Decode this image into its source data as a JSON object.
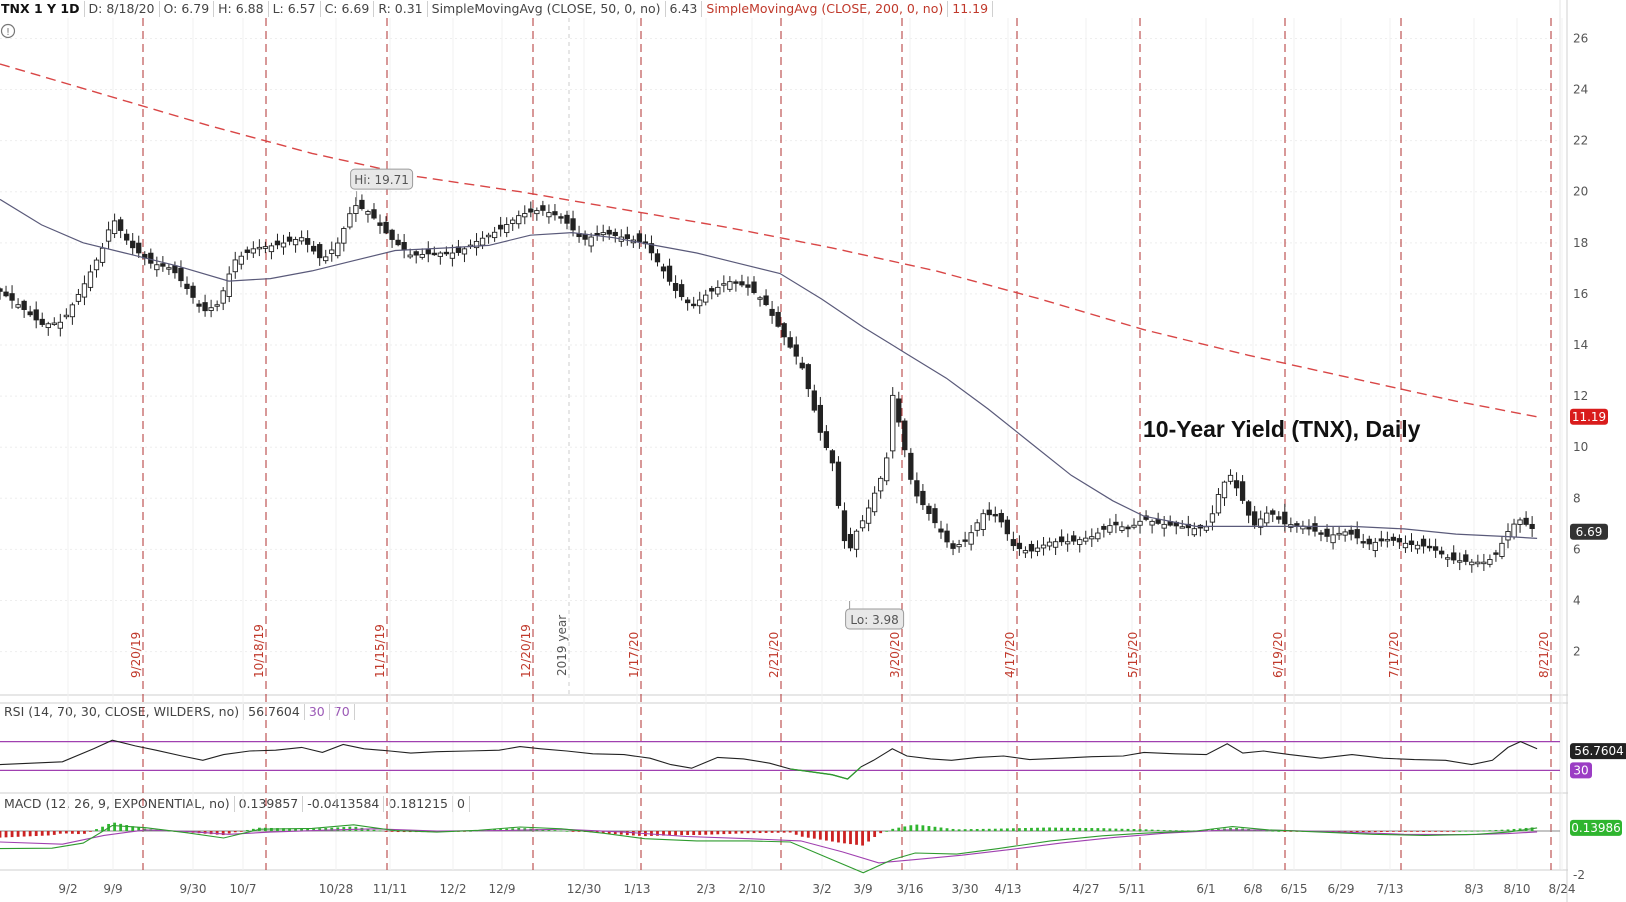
{
  "header": {
    "symbol": "TNX 1 Y 1D",
    "date": "D: 8/18/20",
    "open": "O: 6.79",
    "high": "H: 6.88",
    "low": "L: 6.57",
    "close": "C: 6.69",
    "range": "R: 0.31",
    "sma50_label": "SimpleMovingAvg (CLOSE, 50, 0, no)",
    "sma50_value": "6.43",
    "sma200_label": "SimpleMovingAvg (CLOSE, 200, 0, no)",
    "sma200_value": "11.19"
  },
  "rsi_header": {
    "label": "RSI (14, 70, 30, CLOSE, WILDERS, no)",
    "value": "56.7604",
    "oversold": "30",
    "overbought": "70"
  },
  "macd_header": {
    "label": "MACD (12, 26, 9, EXPONENTIAL, no)",
    "value": "0.139857",
    "avg": "-0.0413584",
    "diff": "0.181215",
    "zero": "0"
  },
  "badges": {
    "sma200": "11.19",
    "last": "6.69",
    "rsi": "56.7604",
    "rsi_low": "30",
    "macd": "0.13986"
  },
  "annotations": {
    "title": "10-Year Yield (TNX), Daily",
    "hi": "Hi: 19.71",
    "lo": "Lo: 3.98",
    "year": "2019 year",
    "info_icon": "!"
  },
  "colors": {
    "sma50": "#5a5a7a",
    "sma200": "#d94646",
    "vline": "#b03030",
    "rsi_line": "#222222",
    "rsi_low": "#2e9b2e",
    "rsi_bound": "#a040b0",
    "macd_line": "#2e9b2e",
    "macd_signal": "#a040b0",
    "hist_pos": "#2fb52f",
    "hist_neg": "#cc2222",
    "badge_sma200": "#d91c1c",
    "badge_last": "#333333",
    "badge_rsi_low": "#9b3dc4"
  },
  "chart_data": {
    "type": "candlestick",
    "title": "10-Year Yield (TNX), Daily",
    "y_ticks": [
      2,
      4,
      6,
      8,
      10,
      12,
      14,
      16,
      18,
      20,
      22,
      24,
      26
    ],
    "ylim": [
      0.3,
      26.8
    ],
    "x_ticks": [
      "9/2",
      "9/9",
      "9/30",
      "10/7",
      "10/28",
      "11/11",
      "12/2",
      "12/9",
      "12/30",
      "1/13",
      "2/3",
      "2/10",
      "3/2",
      "3/9",
      "3/16",
      "3/30",
      "4/13",
      "4/27",
      "5/11",
      "6/1",
      "6/8",
      "6/15",
      "6/29",
      "7/13",
      "8/3",
      "8/10",
      "8/24"
    ],
    "expiration_lines": [
      "9/20/19",
      "10/18/19",
      "11/15/19",
      "12/20/19",
      "1/17/20",
      "2/21/20",
      "3/20/20",
      "4/17/20",
      "5/15/20",
      "6/19/20",
      "7/17/20",
      "8/21/20"
    ],
    "close_path": [
      [
        0,
        16.1
      ],
      [
        20,
        15.5
      ],
      [
        40,
        14.8
      ],
      [
        60,
        14.9
      ],
      [
        80,
        16.3
      ],
      [
        100,
        17.9
      ],
      [
        108,
        19.0
      ],
      [
        125,
        17.9
      ],
      [
        145,
        17.2
      ],
      [
        165,
        17.0
      ],
      [
        180,
        16.2
      ],
      [
        195,
        15.3
      ],
      [
        210,
        15.6
      ],
      [
        225,
        17.3
      ],
      [
        245,
        17.8
      ],
      [
        265,
        17.9
      ],
      [
        290,
        18.2
      ],
      [
        310,
        17.3
      ],
      [
        325,
        18.0
      ],
      [
        340,
        19.5
      ],
      [
        355,
        19.2
      ],
      [
        375,
        18.2
      ],
      [
        395,
        17.5
      ],
      [
        420,
        17.6
      ],
      [
        440,
        17.6
      ],
      [
        460,
        18.1
      ],
      [
        480,
        18.5
      ],
      [
        500,
        19.1
      ],
      [
        520,
        19.3
      ],
      [
        540,
        19.0
      ],
      [
        560,
        18.1
      ],
      [
        580,
        18.4
      ],
      [
        600,
        18.2
      ],
      [
        620,
        18.0
      ],
      [
        638,
        16.9
      ],
      [
        648,
        16.2
      ],
      [
        665,
        15.5
      ],
      [
        680,
        16.0
      ],
      [
        700,
        16.5
      ],
      [
        718,
        16.3
      ],
      [
        735,
        15.7
      ],
      [
        750,
        14.6
      ],
      [
        760,
        13.9
      ],
      [
        770,
        13.3
      ],
      [
        780,
        11.9
      ],
      [
        790,
        10.4
      ],
      [
        800,
        9.5
      ],
      [
        808,
        7.2
      ],
      [
        815,
        5.7
      ],
      [
        822,
        6.6
      ],
      [
        832,
        7.3
      ],
      [
        842,
        8.3
      ],
      [
        852,
        9.3
      ],
      [
        858,
        12.1
      ],
      [
        868,
        10.3
      ],
      [
        878,
        8.3
      ],
      [
        890,
        7.6
      ],
      [
        903,
        6.8
      ],
      [
        915,
        6.0
      ],
      [
        930,
        6.4
      ],
      [
        945,
        7.4
      ],
      [
        960,
        7.3
      ],
      [
        975,
        6.1
      ],
      [
        990,
        5.9
      ],
      [
        1010,
        6.3
      ],
      [
        1030,
        6.3
      ],
      [
        1050,
        6.5
      ],
      [
        1070,
        7.0
      ],
      [
        1085,
        6.8
      ],
      [
        1100,
        7.2
      ],
      [
        1115,
        7.0
      ],
      [
        1135,
        6.9
      ],
      [
        1150,
        6.8
      ],
      [
        1162,
        6.9
      ],
      [
        1172,
        8.2
      ],
      [
        1182,
        9.0
      ],
      [
        1195,
        7.9
      ],
      [
        1205,
        6.9
      ],
      [
        1220,
        7.5
      ],
      [
        1235,
        7.0
      ],
      [
        1255,
        6.9
      ],
      [
        1275,
        6.5
      ],
      [
        1295,
        6.7
      ],
      [
        1315,
        6.2
      ],
      [
        1335,
        6.4
      ],
      [
        1355,
        6.2
      ],
      [
        1375,
        6.1
      ],
      [
        1395,
        5.6
      ],
      [
        1415,
        5.5
      ],
      [
        1430,
        5.5
      ],
      [
        1440,
        5.9
      ],
      [
        1450,
        6.7
      ],
      [
        1460,
        7.2
      ],
      [
        1470,
        6.9
      ],
      [
        1478,
        6.69
      ]
    ],
    "sma50": [
      [
        0,
        19.7
      ],
      [
        40,
        18.7
      ],
      [
        80,
        18.0
      ],
      [
        120,
        17.6
      ],
      [
        170,
        17.1
      ],
      [
        220,
        16.5
      ],
      [
        260,
        16.6
      ],
      [
        300,
        16.9
      ],
      [
        340,
        17.3
      ],
      [
        380,
        17.7
      ],
      [
        430,
        17.8
      ],
      [
        470,
        17.9
      ],
      [
        510,
        18.3
      ],
      [
        550,
        18.4
      ],
      [
        590,
        18.2
      ],
      [
        630,
        17.9
      ],
      [
        670,
        17.6
      ],
      [
        710,
        17.2
      ],
      [
        750,
        16.8
      ],
      [
        790,
        15.8
      ],
      [
        830,
        14.7
      ],
      [
        870,
        13.7
      ],
      [
        910,
        12.7
      ],
      [
        950,
        11.5
      ],
      [
        990,
        10.2
      ],
      [
        1030,
        8.9
      ],
      [
        1070,
        7.9
      ],
      [
        1100,
        7.3
      ],
      [
        1150,
        6.9
      ],
      [
        1200,
        6.9
      ],
      [
        1250,
        6.9
      ],
      [
        1300,
        6.9
      ],
      [
        1350,
        6.8
      ],
      [
        1400,
        6.6
      ],
      [
        1450,
        6.5
      ],
      [
        1478,
        6.43
      ]
    ],
    "sma200": [
      [
        0,
        25.0
      ],
      [
        100,
        23.8
      ],
      [
        200,
        22.6
      ],
      [
        300,
        21.5
      ],
      [
        400,
        20.6
      ],
      [
        500,
        20.0
      ],
      [
        600,
        19.3
      ],
      [
        700,
        18.6
      ],
      [
        800,
        17.8
      ],
      [
        900,
        16.9
      ],
      [
        1000,
        15.8
      ],
      [
        1100,
        14.6
      ],
      [
        1200,
        13.6
      ],
      [
        1300,
        12.7
      ],
      [
        1400,
        11.8
      ],
      [
        1478,
        11.19
      ]
    ],
    "hi": 19.71,
    "lo": 3.98,
    "last": 6.69
  },
  "rsi_data": {
    "levels": [
      30,
      70
    ],
    "path": [
      [
        0,
        38
      ],
      [
        30,
        40
      ],
      [
        60,
        42
      ],
      [
        90,
        60
      ],
      [
        108,
        72
      ],
      [
        130,
        64
      ],
      [
        150,
        58
      ],
      [
        175,
        50
      ],
      [
        195,
        44
      ],
      [
        215,
        52
      ],
      [
        240,
        57
      ],
      [
        265,
        58
      ],
      [
        290,
        62
      ],
      [
        310,
        55
      ],
      [
        330,
        66
      ],
      [
        350,
        60
      ],
      [
        375,
        57
      ],
      [
        395,
        54
      ],
      [
        420,
        56
      ],
      [
        450,
        57
      ],
      [
        480,
        58
      ],
      [
        500,
        63
      ],
      [
        520,
        60
      ],
      [
        545,
        57
      ],
      [
        570,
        53
      ],
      [
        600,
        52
      ],
      [
        625,
        47
      ],
      [
        645,
        38
      ],
      [
        665,
        33
      ],
      [
        690,
        48
      ],
      [
        715,
        46
      ],
      [
        740,
        40
      ],
      [
        760,
        32
      ],
      [
        780,
        28
      ],
      [
        800,
        24
      ],
      [
        815,
        18
      ],
      [
        828,
        35
      ],
      [
        840,
        44
      ],
      [
        858,
        60
      ],
      [
        872,
        50
      ],
      [
        895,
        46
      ],
      [
        915,
        44
      ],
      [
        940,
        48
      ],
      [
        965,
        50
      ],
      [
        990,
        45
      ],
      [
        1020,
        47
      ],
      [
        1050,
        49
      ],
      [
        1080,
        50
      ],
      [
        1100,
        55
      ],
      [
        1130,
        53
      ],
      [
        1160,
        52
      ],
      [
        1180,
        67
      ],
      [
        1195,
        54
      ],
      [
        1215,
        57
      ],
      [
        1240,
        52
      ],
      [
        1270,
        47
      ],
      [
        1300,
        52
      ],
      [
        1330,
        47
      ],
      [
        1360,
        45
      ],
      [
        1390,
        44
      ],
      [
        1415,
        38
      ],
      [
        1435,
        44
      ],
      [
        1450,
        62
      ],
      [
        1462,
        70
      ],
      [
        1478,
        60
      ]
    ]
  },
  "macd_data": {
    "macd": [
      [
        0,
        -0.8
      ],
      [
        50,
        -0.78
      ],
      [
        80,
        -0.55
      ],
      [
        108,
        0.25
      ],
      [
        140,
        0.15
      ],
      [
        180,
        -0.08
      ],
      [
        215,
        -0.32
      ],
      [
        250,
        0.08
      ],
      [
        300,
        0.12
      ],
      [
        340,
        0.28
      ],
      [
        380,
        0.02
      ],
      [
        420,
        -0.05
      ],
      [
        460,
        0.03
      ],
      [
        500,
        0.18
      ],
      [
        540,
        0.1
      ],
      [
        580,
        -0.1
      ],
      [
        620,
        -0.35
      ],
      [
        670,
        -0.45
      ],
      [
        720,
        -0.45
      ],
      [
        760,
        -0.5
      ],
      [
        800,
        -1.3
      ],
      [
        830,
        -1.9
      ],
      [
        858,
        -1.3
      ],
      [
        880,
        -1.0
      ],
      [
        920,
        -1.05
      ],
      [
        960,
        -0.8
      ],
      [
        1010,
        -0.45
      ],
      [
        1060,
        -0.22
      ],
      [
        1100,
        -0.1
      ],
      [
        1150,
        0.0
      ],
      [
        1185,
        0.2
      ],
      [
        1220,
        0.05
      ],
      [
        1270,
        -0.05
      ],
      [
        1320,
        -0.15
      ],
      [
        1370,
        -0.2
      ],
      [
        1420,
        -0.15
      ],
      [
        1450,
        -0.05
      ],
      [
        1478,
        0.14
      ]
    ],
    "signal": [
      [
        0,
        -0.5
      ],
      [
        60,
        -0.6
      ],
      [
        100,
        -0.2
      ],
      [
        140,
        0.05
      ],
      [
        180,
        -0.02
      ],
      [
        220,
        -0.15
      ],
      [
        260,
        -0.05
      ],
      [
        320,
        0.05
      ],
      [
        360,
        0.1
      ],
      [
        420,
        0.0
      ],
      [
        480,
        0.02
      ],
      [
        540,
        0.08
      ],
      [
        600,
        -0.05
      ],
      [
        660,
        -0.25
      ],
      [
        720,
        -0.35
      ],
      [
        770,
        -0.45
      ],
      [
        810,
        -0.95
      ],
      [
        845,
        -1.45
      ],
      [
        880,
        -1.3
      ],
      [
        925,
        -1.1
      ],
      [
        970,
        -0.85
      ],
      [
        1020,
        -0.55
      ],
      [
        1070,
        -0.3
      ],
      [
        1120,
        -0.1
      ],
      [
        1180,
        0.05
      ],
      [
        1230,
        0.03
      ],
      [
        1290,
        -0.05
      ],
      [
        1350,
        -0.15
      ],
      [
        1410,
        -0.17
      ],
      [
        1450,
        -0.12
      ],
      [
        1478,
        -0.04
      ]
    ]
  }
}
